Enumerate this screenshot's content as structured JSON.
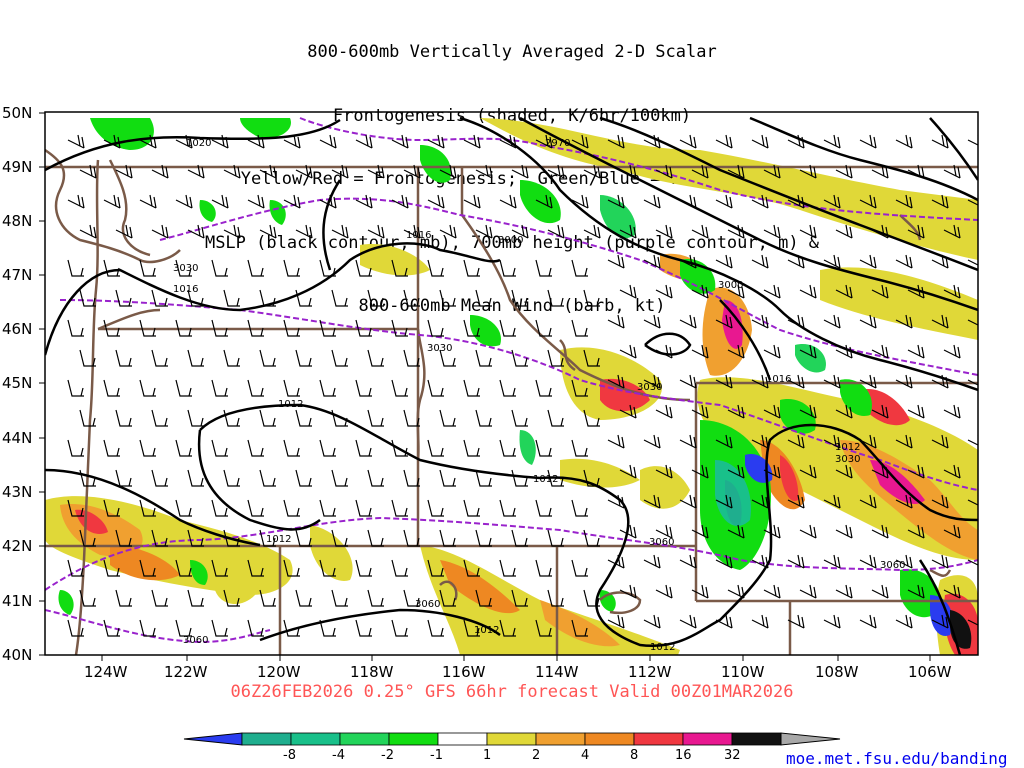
{
  "title_lines": [
    "800-600mb Vertically Averaged 2-D Scalar",
    "Frontogenesis (shaded, K/6hr/100km)",
    "Yellow/Red = Frontogenesis;  Green/Blue = Frontolysis",
    "MSLP (black contour, mb), 700mb height (purple contour, m) &",
    "800-600mb Mean Wind (barb, kt)"
  ],
  "lat_labels": [
    "50N",
    "49N",
    "48N",
    "47N",
    "46N",
    "45N",
    "44N",
    "43N",
    "42N",
    "41N",
    "40N"
  ],
  "lon_labels": [
    "124W",
    "122W",
    "120W",
    "118W",
    "116W",
    "114W",
    "112W",
    "110W",
    "108W",
    "106W"
  ],
  "footer": "06Z26FEB2026 0.25° GFS 66hr forecast Valid 00Z01MAR2026",
  "url": "moe.met.fsu.edu/banding",
  "colorbar": {
    "labels": [
      "-8",
      "-4",
      "-2",
      "-1",
      "1",
      "2",
      "4",
      "8",
      "16",
      "32"
    ],
    "colors": [
      "#2a3cf0",
      "#1fae8e",
      "#19c08a",
      "#22d45a",
      "#11dd11",
      "#ffffff",
      "#e0d838",
      "#f0a030",
      "#ee8822",
      "#f03840",
      "#e81890",
      "#111111",
      "#a8a8a8"
    ]
  },
  "contour_labels": {
    "mslp": [
      "1020",
      "1016",
      "1016",
      "1012",
      "1012",
      "1012",
      "1012",
      "1016",
      "1012",
      "1012"
    ],
    "height": [
      "2970",
      "3000",
      "3030",
      "3000",
      "3030",
      "3030",
      "3030",
      "3060",
      "3060",
      "3060",
      "3060"
    ]
  }
}
